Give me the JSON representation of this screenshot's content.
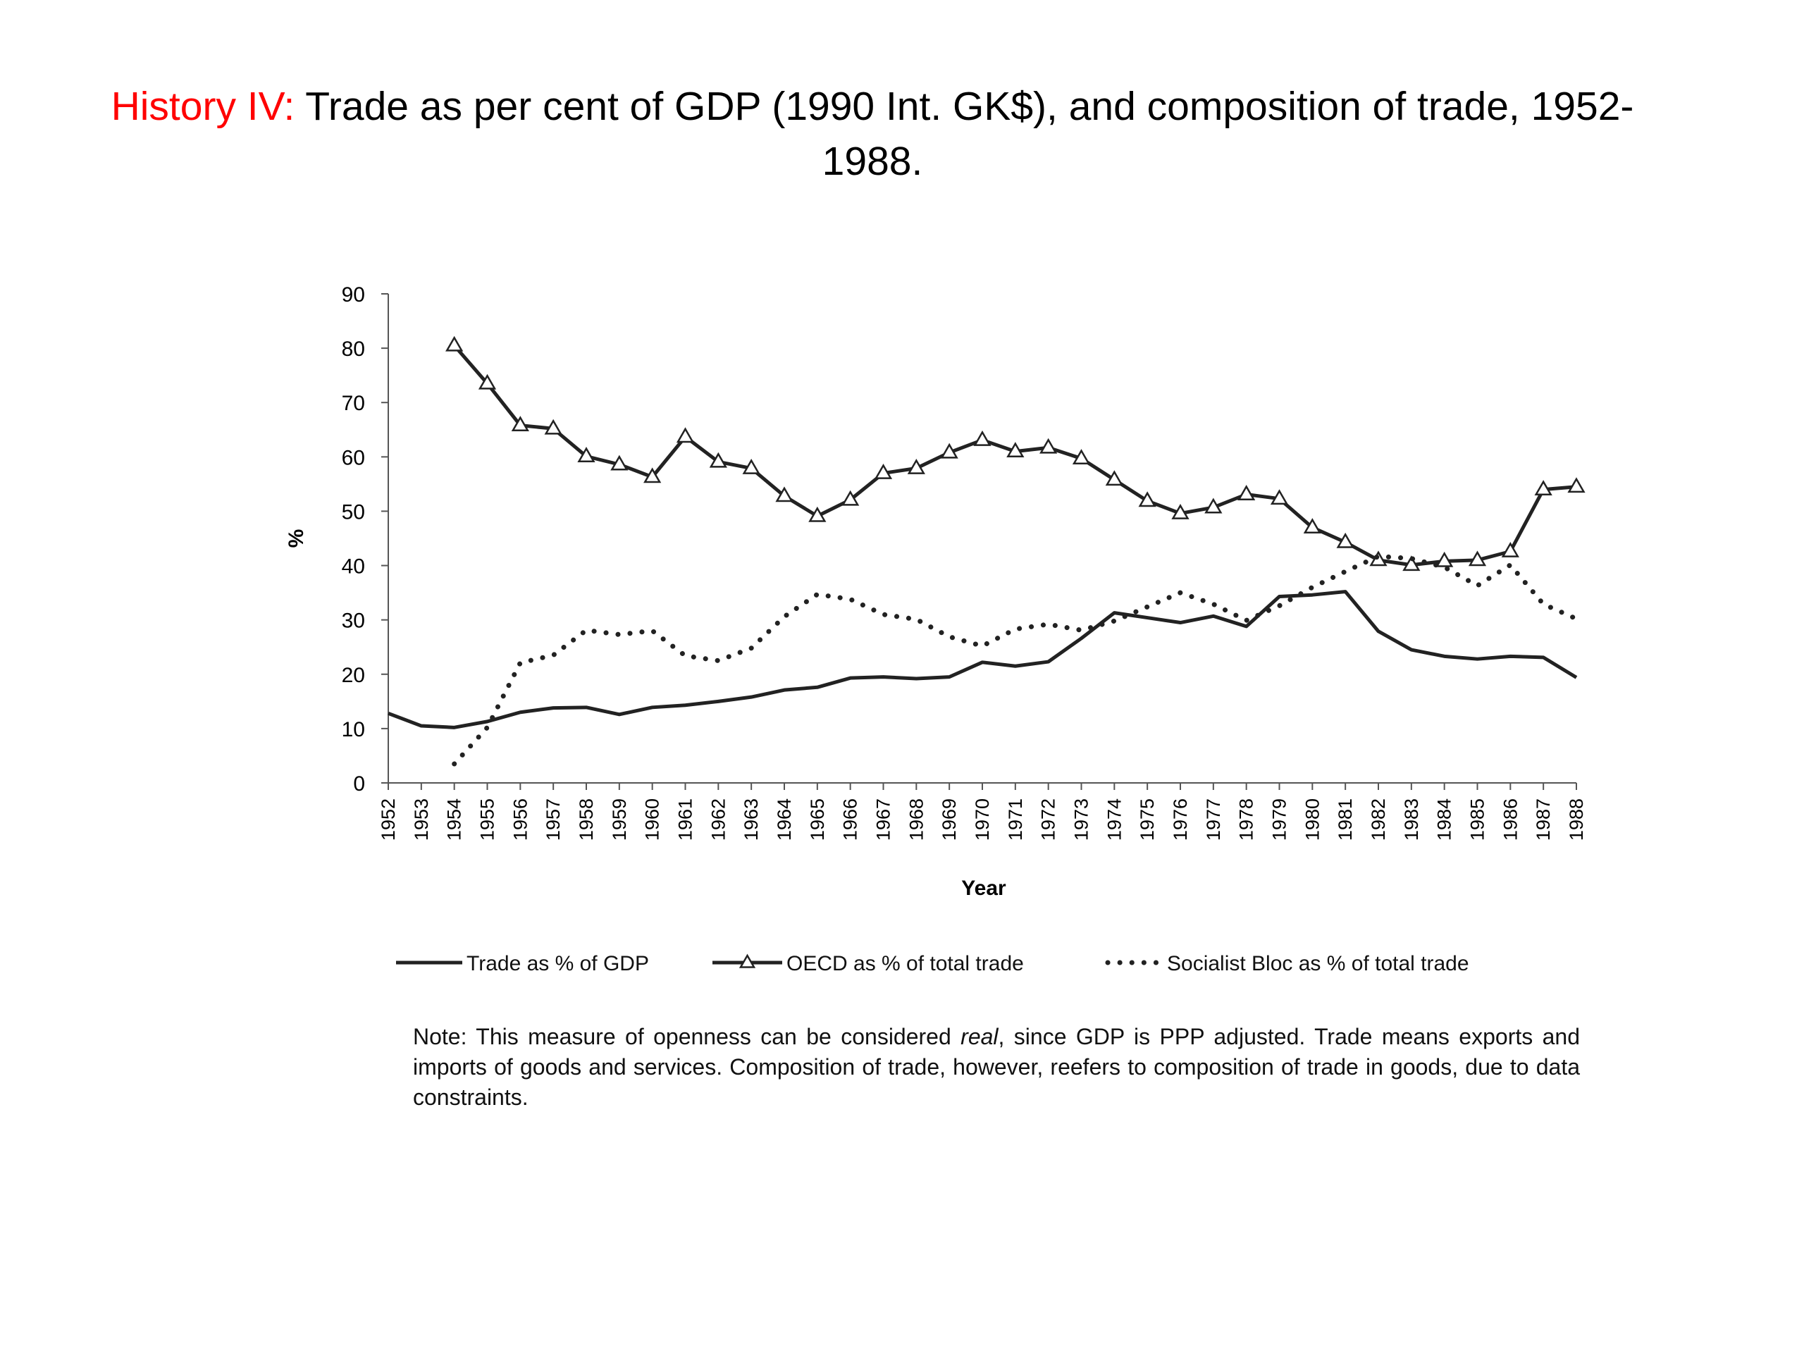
{
  "slide": {
    "title_prefix": "History IV:",
    "title_main": "Trade as per cent of GDP (1990 Int. GK$), and composition of trade, 1952-1988."
  },
  "colors": {
    "title_prefix": "#ff0000",
    "series": "#222222",
    "axis": "#555555"
  },
  "chart_data": {
    "type": "line",
    "title": "",
    "xlabel": "Year",
    "ylabel": "%",
    "ylim": [
      0,
      90
    ],
    "yticks": [
      0,
      10,
      20,
      30,
      40,
      50,
      60,
      70,
      80,
      90
    ],
    "grid": false,
    "legend_position": "bottom",
    "x": [
      "1952",
      "1953",
      "1954",
      "1955",
      "1956",
      "1957",
      "1958",
      "1959",
      "1960",
      "1961",
      "1962",
      "1963",
      "1964",
      "1965",
      "1966",
      "1967",
      "1968",
      "1969",
      "1970",
      "1971",
      "1972",
      "1973",
      "1974",
      "1975",
      "1976",
      "1977",
      "1978",
      "1979",
      "1980",
      "1981",
      "1982",
      "1983",
      "1984",
      "1985",
      "1986",
      "1987",
      "1988"
    ],
    "series": [
      {
        "name": "Trade as % of GDP",
        "style": "solid",
        "marker": "none",
        "values": [
          12.8,
          10.5,
          10.2,
          11.3,
          13.0,
          13.8,
          13.9,
          12.6,
          13.9,
          14.3,
          15.0,
          15.8,
          17.1,
          17.6,
          19.3,
          19.5,
          19.2,
          19.5,
          22.2,
          21.5,
          22.3,
          26.6,
          31.3,
          30.4,
          29.5,
          30.7,
          28.8,
          34.3,
          34.6,
          35.2,
          27.9,
          24.5,
          23.3,
          22.8,
          23.3,
          23.1,
          19.4
        ]
      },
      {
        "name": "OECD as % of total trade",
        "style": "solid",
        "marker": "triangle",
        "values": [
          null,
          null,
          80.5,
          73.5,
          65.8,
          65.2,
          60.1,
          58.6,
          56.3,
          63.7,
          59.1,
          57.9,
          52.8,
          49.1,
          52.1,
          57.0,
          57.9,
          60.8,
          63.1,
          61.0,
          61.7,
          59.7,
          55.8,
          51.9,
          49.6,
          50.7,
          53.1,
          52.3,
          47.0,
          44.3,
          41.0,
          40.1,
          40.8,
          41.0,
          42.6,
          54.0,
          54.5
        ]
      },
      {
        "name": "Socialist Bloc as % of total trade",
        "style": "dotted",
        "marker": "none",
        "values": [
          null,
          null,
          3.5,
          10.2,
          22.1,
          23.5,
          28.1,
          27.3,
          28.0,
          23.4,
          22.5,
          24.8,
          30.6,
          34.7,
          33.8,
          31.0,
          30.1,
          26.9,
          25.2,
          28.3,
          29.2,
          28.1,
          29.8,
          32.4,
          35.0,
          32.9,
          29.9,
          32.6,
          36.0,
          38.9,
          41.7,
          41.3,
          39.7,
          36.3,
          40.1,
          32.9,
          30.2
        ]
      }
    ]
  },
  "note": {
    "prefix": "Note: This measure of openness can be considered ",
    "emphasis": "real",
    "suffix": ", since GDP is PPP adjusted. Trade means exports and imports of goods and services. Composition of trade, however, reefers to composition of trade in goods, due to data constraints."
  }
}
